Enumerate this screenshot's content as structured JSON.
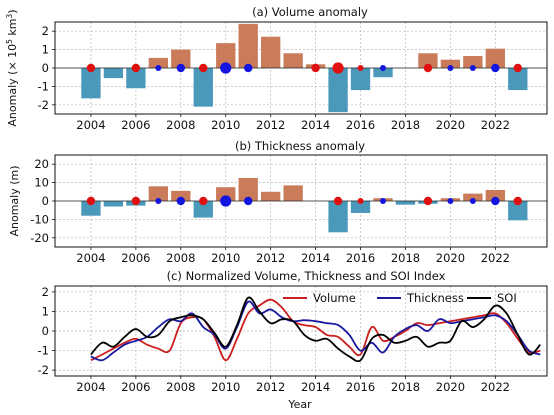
{
  "chart_data": [
    {
      "type": "bar",
      "title": "(a) Volume anomaly",
      "ylabel_main": "Anomaly (× 10",
      "ylabel_sup": "5",
      "ylabel_unit": " km",
      "ylabel_sup2": "3",
      "ylabel_end": ")",
      "ylim": [
        -2.5,
        2.5
      ],
      "yticks": [
        -2,
        -1,
        0,
        1,
        2
      ],
      "xlim": [
        2002.4,
        2024.3
      ],
      "xticks": [
        2004,
        2006,
        2008,
        2010,
        2012,
        2014,
        2016,
        2018,
        2020,
        2022
      ],
      "grid": true,
      "years": [
        2004,
        2005,
        2006,
        2007,
        2008,
        2009,
        2010,
        2011,
        2012,
        2013,
        2014,
        2015,
        2016,
        2017,
        2018,
        2019,
        2020,
        2021,
        2022,
        2023
      ],
      "values": [
        -1.65,
        -0.55,
        -1.1,
        0.55,
        1.0,
        -2.1,
        1.35,
        2.4,
        1.7,
        0.8,
        0.2,
        -2.4,
        -1.2,
        -0.5,
        0.0,
        0.8,
        0.45,
        0.65,
        1.05,
        -1.2
      ],
      "markers": [
        {
          "x": 2004,
          "color": "red",
          "size": "medium"
        },
        {
          "x": 2006,
          "color": "red",
          "size": "medium"
        },
        {
          "x": 2007,
          "color": "blue",
          "size": "small"
        },
        {
          "x": 2008,
          "color": "blue",
          "size": "medium"
        },
        {
          "x": 2009,
          "color": "red",
          "size": "medium"
        },
        {
          "x": 2010,
          "color": "blue",
          "size": "large"
        },
        {
          "x": 2011,
          "color": "blue",
          "size": "medium"
        },
        {
          "x": 2014,
          "color": "red",
          "size": "medium"
        },
        {
          "x": 2015,
          "color": "red",
          "size": "large"
        },
        {
          "x": 2016,
          "color": "red",
          "size": "small"
        },
        {
          "x": 2017,
          "color": "blue",
          "size": "small"
        },
        {
          "x": 2019,
          "color": "red",
          "size": "medium"
        },
        {
          "x": 2020,
          "color": "blue",
          "size": "small"
        },
        {
          "x": 2021,
          "color": "blue",
          "size": "small"
        },
        {
          "x": 2022,
          "color": "blue",
          "size": "medium"
        },
        {
          "x": 2023,
          "color": "red",
          "size": "medium"
        }
      ]
    },
    {
      "type": "bar",
      "title": "(b) Thickness anomaly",
      "ylabel": "Anomaly (m)",
      "ylim": [
        -25,
        25
      ],
      "yticks": [
        -20,
        -10,
        0,
        10,
        20
      ],
      "xlim": [
        2002.4,
        2024.3
      ],
      "xticks": [
        2004,
        2006,
        2008,
        2010,
        2012,
        2014,
        2016,
        2018,
        2020,
        2022
      ],
      "grid": true,
      "years": [
        2004,
        2005,
        2006,
        2007,
        2008,
        2009,
        2010,
        2011,
        2012,
        2013,
        2014,
        2015,
        2016,
        2017,
        2018,
        2019,
        2020,
        2021,
        2022,
        2023
      ],
      "values": [
        -8,
        -3,
        -2.5,
        8,
        5.5,
        -9,
        7.5,
        12.5,
        5,
        8.5,
        0,
        -17,
        -6.5,
        1.5,
        -2,
        -1.5,
        1.5,
        4,
        6,
        -10.5
      ],
      "markers": [
        {
          "x": 2004,
          "color": "red",
          "size": "medium"
        },
        {
          "x": 2006,
          "color": "red",
          "size": "medium"
        },
        {
          "x": 2007,
          "color": "blue",
          "size": "small"
        },
        {
          "x": 2008,
          "color": "blue",
          "size": "medium"
        },
        {
          "x": 2009,
          "color": "red",
          "size": "medium"
        },
        {
          "x": 2010,
          "color": "blue",
          "size": "large"
        },
        {
          "x": 2011,
          "color": "blue",
          "size": "medium"
        },
        {
          "x": 2015,
          "color": "red",
          "size": "medium"
        },
        {
          "x": 2016,
          "color": "red",
          "size": "small"
        },
        {
          "x": 2017,
          "color": "blue",
          "size": "small"
        },
        {
          "x": 2019,
          "color": "red",
          "size": "medium"
        },
        {
          "x": 2020,
          "color": "blue",
          "size": "small"
        },
        {
          "x": 2021,
          "color": "blue",
          "size": "small"
        },
        {
          "x": 2022,
          "color": "blue",
          "size": "medium"
        },
        {
          "x": 2023,
          "color": "red",
          "size": "medium"
        }
      ]
    },
    {
      "type": "line",
      "title": "(c) Normalized Volume, Thickness and SOI Index",
      "xlabel": "Year",
      "ylim": [
        -2.3,
        2.3
      ],
      "yticks": [
        -2,
        -1,
        0,
        1,
        2
      ],
      "xlim": [
        2002.4,
        2024.3
      ],
      "xticks": [
        2004,
        2006,
        2008,
        2010,
        2012,
        2014,
        2016,
        2018,
        2020,
        2022
      ],
      "grid": true,
      "legend_position": "top-right",
      "series": [
        {
          "name": "Volume",
          "color": "#cc2020",
          "x": [
            2004,
            2004.5,
            2005,
            2005.5,
            2006,
            2006.5,
            2007,
            2007.5,
            2008,
            2008.5,
            2009,
            2009.5,
            2010,
            2010.5,
            2011,
            2011.5,
            2012,
            2012.5,
            2013,
            2013.5,
            2014,
            2014.5,
            2015,
            2015.5,
            2016,
            2016.5,
            2017,
            2017.5,
            2018,
            2018.5,
            2019,
            2019.5,
            2020,
            2020.5,
            2021,
            2021.5,
            2022,
            2022.5,
            2023,
            2023.5,
            2024
          ],
          "y": [
            -1.5,
            -1.2,
            -0.9,
            -0.6,
            -0.4,
            -0.7,
            -0.9,
            -1.0,
            0.4,
            0.7,
            0.6,
            -0.3,
            -1.5,
            -0.4,
            0.9,
            1.3,
            1.6,
            1.2,
            0.5,
            0.3,
            0.2,
            -0.2,
            -0.3,
            -0.8,
            -1.2,
            0.2,
            -0.5,
            -0.3,
            0.0,
            0.4,
            0.3,
            0.4,
            0.5,
            0.6,
            0.7,
            0.8,
            0.9,
            0.4,
            -0.4,
            -1.1,
            -1.0
          ]
        },
        {
          "name": "Thickness",
          "color": "#1a1aa0",
          "x": [
            2004,
            2004.5,
            2005,
            2005.5,
            2006,
            2006.5,
            2007,
            2007.5,
            2008,
            2008.5,
            2009,
            2009.5,
            2010,
            2010.5,
            2011,
            2011.5,
            2012,
            2012.5,
            2013,
            2013.5,
            2014,
            2014.5,
            2015,
            2015.5,
            2016,
            2016.5,
            2017,
            2017.5,
            2018,
            2018.5,
            2019,
            2019.5,
            2020,
            2020.5,
            2021,
            2021.5,
            2022,
            2022.5,
            2023,
            2023.5,
            2024
          ],
          "y": [
            -1.3,
            -1.5,
            -1.1,
            -0.7,
            -0.5,
            -0.3,
            0.2,
            0.6,
            0.5,
            0.9,
            0.2,
            -0.2,
            -0.9,
            0.2,
            1.5,
            0.9,
            1.1,
            0.7,
            0.5,
            0.55,
            0.5,
            0.4,
            0.3,
            -0.2,
            -1.0,
            -0.6,
            -1.1,
            -0.3,
            0.1,
            0.3,
            0.0,
            0.6,
            0.4,
            0.5,
            0.6,
            0.7,
            0.8,
            0.5,
            -0.2,
            -1.0,
            -1.2
          ]
        },
        {
          "name": "SOI",
          "color": "#000000",
          "x": [
            2004,
            2004.5,
            2005,
            2005.5,
            2006,
            2006.5,
            2007,
            2007.5,
            2008,
            2008.5,
            2009,
            2009.5,
            2010,
            2010.5,
            2011,
            2011.5,
            2012,
            2012.5,
            2013,
            2013.5,
            2014,
            2014.5,
            2015,
            2015.5,
            2016,
            2016.5,
            2017,
            2017.5,
            2018,
            2018.5,
            2019,
            2019.5,
            2020,
            2020.5,
            2021,
            2021.5,
            2022,
            2022.5,
            2023,
            2023.5,
            2024
          ],
          "y": [
            -1.2,
            -0.6,
            -0.8,
            -0.3,
            0.1,
            -0.3,
            -0.2,
            0.5,
            0.7,
            0.8,
            0.6,
            -0.1,
            -0.8,
            0.3,
            1.7,
            1.0,
            0.4,
            0.6,
            0.5,
            -0.2,
            -0.5,
            -0.4,
            -0.9,
            -1.3,
            -1.5,
            -0.4,
            -0.2,
            -0.6,
            -0.5,
            -0.3,
            -0.8,
            -0.6,
            -0.5,
            0.5,
            0.2,
            0.6,
            1.3,
            0.9,
            -0.2,
            -1.2,
            -0.7
          ]
        }
      ]
    }
  ],
  "colors": {
    "positive_bar": "#c97b5a",
    "negative_bar": "#4a98ba",
    "marker_red": "#e01010",
    "marker_blue": "#1515e0"
  }
}
